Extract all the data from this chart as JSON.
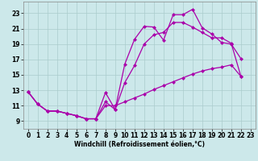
{
  "bg_color": "#cce8ea",
  "line_color": "#aa00aa",
  "grid_color": "#aacccc",
  "xlabel": "Windchill (Refroidissement éolien,°C)",
  "xlim": [
    -0.5,
    23.5
  ],
  "ylim": [
    8.0,
    24.5
  ],
  "yticks": [
    9,
    11,
    13,
    15,
    17,
    19,
    21,
    23
  ],
  "xticks": [
    0,
    1,
    2,
    3,
    4,
    5,
    6,
    7,
    8,
    9,
    10,
    11,
    12,
    13,
    14,
    15,
    16,
    17,
    18,
    19,
    20,
    21,
    22,
    23
  ],
  "line_a_x": [
    0,
    1,
    2,
    3,
    4,
    5,
    6,
    7,
    8,
    9,
    10,
    11,
    12,
    13,
    14,
    15,
    16,
    17,
    18,
    19,
    20,
    21,
    22
  ],
  "line_a_y": [
    12.8,
    11.2,
    10.3,
    10.3,
    10.0,
    9.7,
    9.3,
    9.3,
    12.7,
    10.5,
    16.4,
    19.6,
    21.3,
    21.2,
    19.5,
    22.8,
    22.8,
    23.5,
    21.1,
    20.3,
    19.2,
    19.0,
    17.1
  ],
  "line_b_x": [
    0,
    1,
    2,
    3,
    4,
    5,
    6,
    7,
    8,
    9,
    10,
    11,
    12,
    13,
    14,
    15,
    16,
    17,
    18,
    19,
    20,
    21,
    22
  ],
  "line_b_y": [
    12.8,
    11.2,
    10.3,
    10.3,
    10.0,
    9.7,
    9.3,
    9.3,
    11.5,
    10.5,
    14.0,
    16.2,
    19.0,
    20.2,
    20.5,
    21.8,
    21.8,
    21.2,
    20.5,
    19.8,
    19.8,
    19.1,
    14.8
  ],
  "line_c_x": [
    0,
    1,
    2,
    3,
    4,
    5,
    6,
    7,
    8,
    9,
    10,
    11,
    12,
    13,
    14,
    15,
    16,
    17,
    18,
    19,
    20,
    21,
    22
  ],
  "line_c_y": [
    12.8,
    11.2,
    10.3,
    10.3,
    10.0,
    9.7,
    9.3,
    9.3,
    11.0,
    11.0,
    11.5,
    12.0,
    12.5,
    13.1,
    13.6,
    14.1,
    14.6,
    15.1,
    15.5,
    15.8,
    16.0,
    16.3,
    14.8
  ],
  "markersize": 2.5,
  "linewidth": 0.9
}
